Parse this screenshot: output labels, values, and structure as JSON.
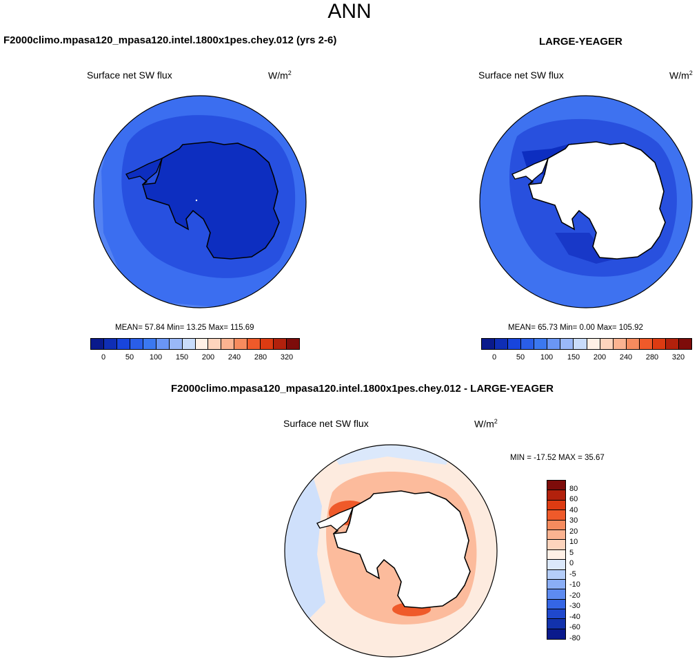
{
  "figure_title": "ANN",
  "colors": {
    "c_scale": [
      "#0a1a8c",
      "#0f2eb5",
      "#1845dc",
      "#2a5ee8",
      "#3b78f0",
      "#6a96f5",
      "#9ab8f8",
      "#c9dcfb",
      "#fff0e6",
      "#fdd4bd",
      "#fbb391",
      "#f68b5e",
      "#ef5a2a",
      "#dd3b12",
      "#b2210c",
      "#7d0c0a"
    ],
    "diff_scale": [
      "#7d0c0a",
      "#b2210c",
      "#dd3b12",
      "#ef5a2a",
      "#f68b5e",
      "#fbb391",
      "#fdd4bd",
      "#fff0e6",
      "#dbe8fb",
      "#b4cdf9",
      "#8aaef6",
      "#5d8bf1",
      "#3566e5",
      "#1f48cd",
      "#1232ac",
      "#0a1a8c"
    ],
    "panel1_ocean": "#3b6ef0",
    "panel1_inner": "#2750e0",
    "panel1_ice": "#0d2ec0",
    "panel2_ocean": "#3e72f0",
    "panel2_inner": "#2850de"
  },
  "panel1": {
    "title": "F2000climo.mpasa120_mpasa120.intel.1800x1pes.chey.012 (yrs 2-6)",
    "variable": "Surface net SW flux",
    "units": "W/m",
    "units_exp": "2",
    "stats": "MEAN=  57.84  Min=  13.25  Max= 115.69",
    "colorbar_labels": [
      "0",
      "50",
      "100",
      "150",
      "200",
      "240",
      "280",
      "320"
    ]
  },
  "panel2": {
    "title": "LARGE-YEAGER",
    "variable": "Surface net SW flux",
    "units": "W/m",
    "units_exp": "2",
    "stats": "MEAN=  65.73  Min=   0.00  Max= 105.92",
    "colorbar_labels": [
      "0",
      "50",
      "100",
      "150",
      "200",
      "240",
      "280",
      "320"
    ]
  },
  "panel3": {
    "title": "F2000climo.mpasa120_mpasa120.intel.1800x1pes.chey.012 - LARGE-YEAGER",
    "variable": "Surface net SW flux",
    "units": "W/m",
    "units_exp": "2",
    "stats": "MIN = -17.52 MAX =  35.67",
    "colorbar_labels": [
      "80",
      "60",
      "40",
      "30",
      "20",
      "10",
      "5",
      "0",
      "-5",
      "-10",
      "-20",
      "-30",
      "-40",
      "-60",
      "-80"
    ]
  }
}
